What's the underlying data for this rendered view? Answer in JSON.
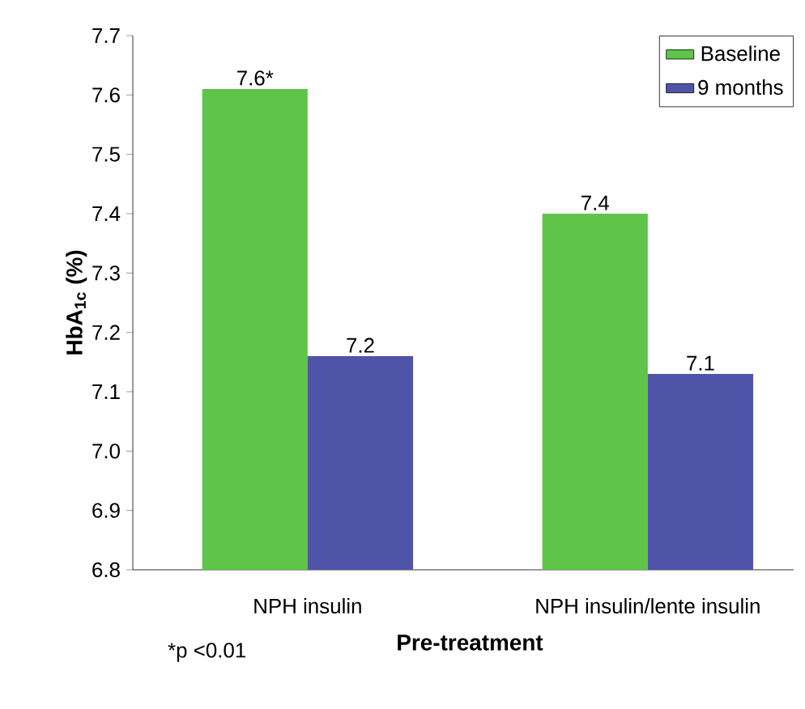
{
  "chart_data": {
    "type": "bar",
    "ylabel": "HbA$_{1c}$ (%)",
    "xlabel": "Pre-treatment",
    "categories": [
      "NPH insulin",
      "NPH insulin/lente insulin"
    ],
    "series": [
      {
        "name": "Baseline",
        "color": "#5ec44a",
        "values": [
          7.61,
          7.4
        ],
        "value_labels": [
          "7.6*",
          "7.4"
        ]
      },
      {
        "name": "9 months",
        "color": "#5054a8",
        "values": [
          7.16,
          7.13
        ],
        "value_labels": [
          "7.2",
          "7.1"
        ]
      }
    ],
    "ylim": [
      6.8,
      7.7
    ],
    "yticks": [
      6.8,
      6.9,
      {
        "value": 7,
        "label": "7.0"
      },
      7.1,
      7.2,
      7.3,
      7.4,
      7.5,
      7.6,
      7.7
    ],
    "legend": "top right",
    "annotations": [
      "*p <0.01"
    ]
  }
}
